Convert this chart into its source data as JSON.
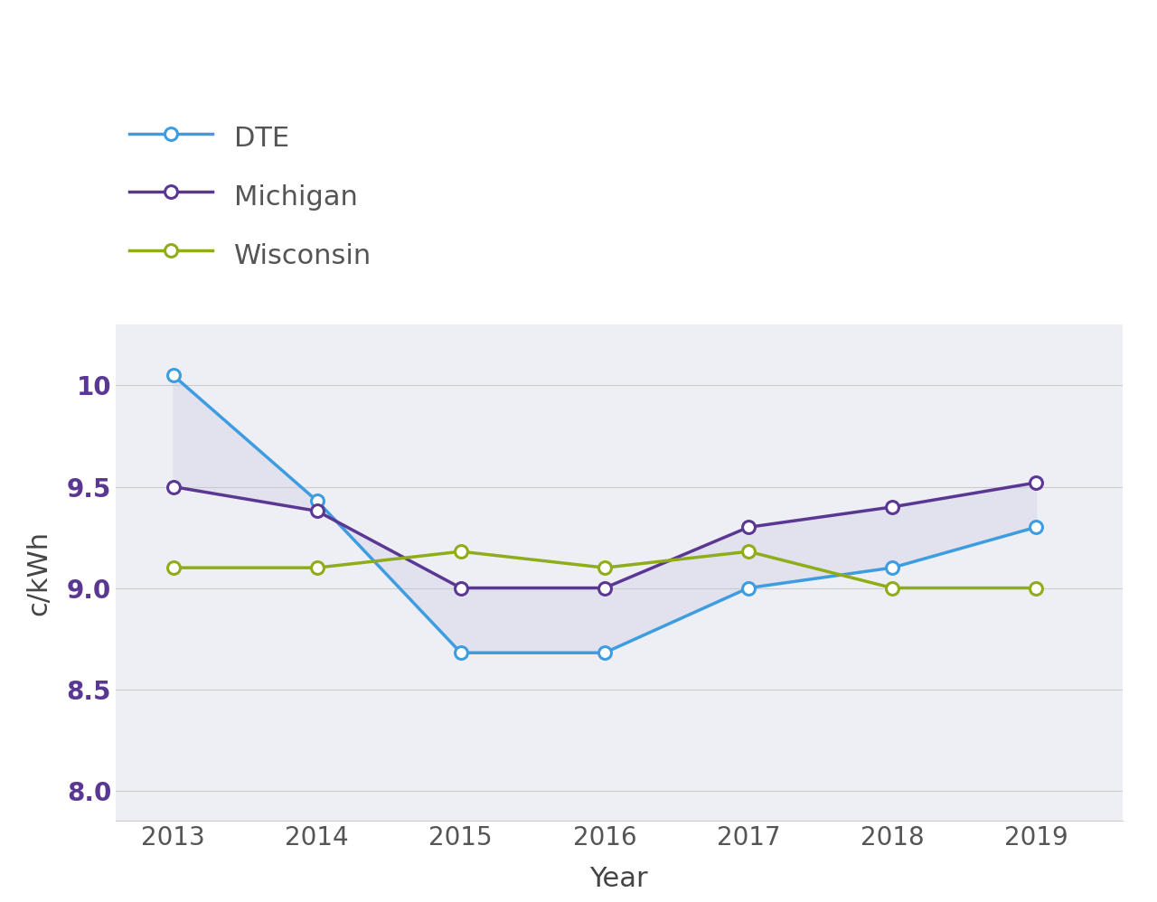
{
  "years": [
    2013,
    2014,
    2015,
    2016,
    2017,
    2018,
    2019
  ],
  "dte": [
    10.05,
    9.43,
    8.68,
    8.68,
    9.0,
    9.1,
    9.3
  ],
  "michigan": [
    9.5,
    9.38,
    9.0,
    9.0,
    9.3,
    9.4,
    9.52
  ],
  "wisconsin": [
    9.1,
    9.1,
    9.18,
    9.1,
    9.18,
    9.0,
    9.0
  ],
  "dte_color": "#3e9de0",
  "michigan_color": "#5b3794",
  "wisconsin_color": "#8fac1a",
  "fill_color": "#e2e2ee",
  "plot_bg_color": "#eeeef5",
  "fig_bg_color": "#ffffff",
  "ylabel": "c/kWh",
  "xlabel": "Year",
  "ylim_min": 7.85,
  "ylim_max": 10.3,
  "yticks": [
    8.0,
    8.5,
    9.0,
    9.5,
    10.0
  ],
  "ytick_labels": [
    "8.0",
    "8.5",
    "9.0",
    "9.5",
    "10"
  ],
  "xticks": [
    2013,
    2014,
    2015,
    2016,
    2017,
    2018,
    2019
  ],
  "legend_labels": [
    "DTE",
    "Michigan",
    "Wisconsin"
  ],
  "ytick_color": "#5b3794",
  "xtick_color": "#555555",
  "axis_label_color": "#444444",
  "grid_color": "#cccccc",
  "marker_size": 10,
  "marker_edge_width": 2.2,
  "line_width": 2.5,
  "legend_fontsize": 22,
  "tick_fontsize": 20,
  "axis_label_fontsize": 22
}
